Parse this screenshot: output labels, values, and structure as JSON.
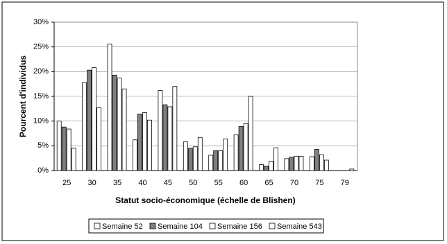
{
  "chart_data": {
    "type": "bar",
    "categories": [
      "25",
      "30",
      "35",
      "40",
      "45",
      "50",
      "55",
      "60",
      "65",
      "70",
      "75",
      "79"
    ],
    "series": [
      {
        "name": "Semaine 52",
        "color": "#ffffff",
        "values": [
          10,
          17.8,
          25.6,
          6.2,
          16.2,
          5.8,
          3.1,
          7.2,
          1.2,
          2.4,
          2.8,
          0
        ]
      },
      {
        "name": "Semaine 104",
        "color": "#808080",
        "values": [
          8.8,
          20.3,
          19.3,
          11.4,
          13.3,
          4.5,
          4.0,
          8.9,
          0.9,
          2.7,
          4.3,
          0
        ]
      },
      {
        "name": "Semaine 156",
        "color": "#ffffff",
        "values": [
          8.4,
          20.8,
          18.7,
          11.7,
          12.9,
          4.8,
          4.0,
          9.5,
          1.9,
          2.9,
          3.2,
          0
        ]
      },
      {
        "name": "Semaine 543",
        "color": "#ffffff",
        "values": [
          4.5,
          12.7,
          16.5,
          10.2,
          17,
          6.7,
          6.4,
          15,
          4.6,
          2.9,
          2.1,
          0.3
        ]
      }
    ],
    "x_label": "Statut socio-économique (échelle de Blishen)",
    "y_label": "Pourcent d'individus",
    "ylim": [
      0,
      30
    ],
    "yticks": [
      {
        "value": 0,
        "label": "0%"
      },
      {
        "value": 5,
        "label": "5%"
      },
      {
        "value": 10,
        "label": "10%"
      },
      {
        "value": 15,
        "label": "15%"
      },
      {
        "value": 20,
        "label": "20%"
      },
      {
        "value": 25,
        "label": "25%"
      },
      {
        "value": 30,
        "label": "30%"
      }
    ],
    "grid": true,
    "legend": "bottom"
  }
}
